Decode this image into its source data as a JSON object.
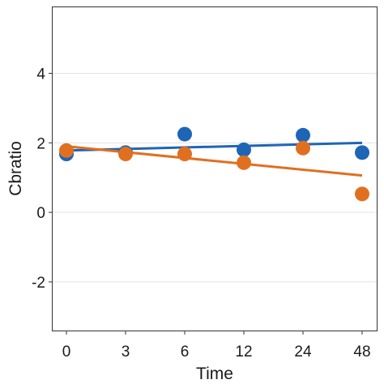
{
  "chart_data": {
    "type": "scatter",
    "xlabel": "Time",
    "ylabel": "Cbratio",
    "categories": [
      "0",
      "3",
      "6",
      "12",
      "24",
      "48"
    ],
    "ylim": [
      -3.4,
      5.9
    ],
    "yticks": [
      -2,
      0,
      2,
      4
    ],
    "grid": "horizontal major lines",
    "legend": "none",
    "series": [
      {
        "color": "#1f65b6",
        "points": [
          1.68,
          1.72,
          2.25,
          1.8,
          2.22,
          1.72
        ],
        "trend": [
          1.78,
          2.0
        ]
      },
      {
        "color": "#e07020",
        "points": [
          1.78,
          1.68,
          1.68,
          1.43,
          1.85,
          0.53
        ],
        "trend": [
          1.9,
          1.06
        ]
      }
    ]
  }
}
